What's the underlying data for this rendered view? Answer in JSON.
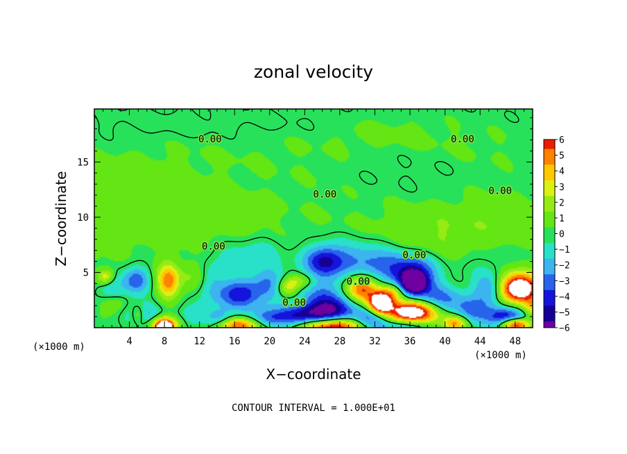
{
  "chart_data": {
    "type": "heatmap",
    "title": "zonal velocity",
    "xlabel": "X−coordinate",
    "ylabel": "Z−coordinate",
    "x_unit": "(×1000 m)",
    "x_unit_right": "(×1000 m)",
    "xlim": [
      0,
      50
    ],
    "ylim": [
      0,
      19.8
    ],
    "x_ticks": [
      4,
      8,
      12,
      16,
      20,
      24,
      28,
      32,
      36,
      40,
      44,
      48
    ],
    "x_tick_labels": [
      "4",
      "8",
      "12",
      "16",
      "20",
      "24",
      "28",
      "32",
      "36",
      "40",
      "44",
      "48"
    ],
    "y_ticks": [
      5,
      10,
      15
    ],
    "y_tick_labels": [
      "5",
      "10",
      "15"
    ],
    "colorbar": {
      "min": -6,
      "max": 6,
      "ticks": [
        6,
        5,
        4,
        3,
        2,
        1,
        0,
        -1,
        -2,
        -3,
        -4,
        -5,
        -6
      ],
      "tick_labels": [
        "6",
        "5",
        "4",
        "3",
        "2",
        "1",
        "0",
        "−1",
        "−2",
        "−3",
        "−4",
        "−5",
        "−6"
      ]
    },
    "contour_level": 0,
    "contour_label": "0.00",
    "contour_labels": [
      {
        "x": 13.6,
        "y": 7.4,
        "text": "0.00"
      },
      {
        "x": 13.2,
        "y": 17.1,
        "text": "0.00"
      },
      {
        "x": 42.0,
        "y": 17.1,
        "text": "0.00"
      },
      {
        "x": 26.3,
        "y": 12.1,
        "text": "0.00"
      },
      {
        "x": 46.3,
        "y": 12.4,
        "text": "0.00"
      },
      {
        "x": 36.5,
        "y": 6.6,
        "text": "0.00"
      },
      {
        "x": 30.1,
        "y": 4.2,
        "text": "0.00"
      },
      {
        "x": 22.8,
        "y": 2.3,
        "text": "0.00"
      }
    ],
    "features": [
      {
        "x": 0.5,
        "y": 10.0,
        "value": 0.6,
        "sx": 6,
        "sy": 3
      },
      {
        "x": 8.0,
        "y": 10.5,
        "value": 0.4,
        "sx": 6,
        "sy": 3
      },
      {
        "x": 15.0,
        "y": 9.8,
        "value": 0.7,
        "sx": 3,
        "sy": 1.5
      },
      {
        "x": 26.0,
        "y": 10.0,
        "value": 0.3,
        "sx": 8,
        "sy": 3
      },
      {
        "x": 38.0,
        "y": 8.5,
        "value": 1.2,
        "sx": 4,
        "sy": 1.8
      },
      {
        "x": 46.0,
        "y": 9.5,
        "value": 0.9,
        "sx": 4,
        "sy": 2
      },
      {
        "x": 6.0,
        "y": 14.5,
        "value": 0.3,
        "sx": 6,
        "sy": 2
      },
      {
        "x": 22.0,
        "y": 16.0,
        "value": 0.3,
        "sx": 8,
        "sy": 2
      },
      {
        "x": 34.0,
        "y": 17.5,
        "value": 0.6,
        "sx": 5,
        "sy": 1.2
      },
      {
        "x": 36.0,
        "y": 14.5,
        "value": -0.3,
        "sx": 6,
        "sy": 2
      },
      {
        "x": 44.0,
        "y": 16.0,
        "value": 0.4,
        "sx": 5,
        "sy": 1.5
      },
      {
        "x": 12.0,
        "y": 18.5,
        "value": -0.5,
        "sx": 10,
        "sy": 1
      },
      {
        "x": 30.0,
        "y": 6.2,
        "value": -2.2,
        "sx": 3,
        "sy": 1.2
      },
      {
        "x": 26.2,
        "y": 6.0,
        "value": -4.2,
        "sx": 1.6,
        "sy": 1.0
      },
      {
        "x": 36.5,
        "y": 4.6,
        "value": -5.8,
        "sx": 1.7,
        "sy": 1.3
      },
      {
        "x": 36.5,
        "y": 4.1,
        "value": -6.6,
        "sx": 0.8,
        "sy": 0.55
      },
      {
        "x": 33.0,
        "y": 5.5,
        "value": -2.0,
        "sx": 2,
        "sy": 1
      },
      {
        "x": 8.4,
        "y": 4.2,
        "value": 5.0,
        "sx": 0.9,
        "sy": 1.1
      },
      {
        "x": 4.8,
        "y": 4.3,
        "value": -3.5,
        "sx": 1.0,
        "sy": 0.9
      },
      {
        "x": 2.0,
        "y": 3.5,
        "value": -1.8,
        "sx": 1.2,
        "sy": 1.0
      },
      {
        "x": 1.3,
        "y": 4.6,
        "value": 3.5,
        "sx": 0.7,
        "sy": 0.5
      },
      {
        "x": 2.2,
        "y": 2.2,
        "value": 1.8,
        "sx": 1.1,
        "sy": 0.7
      },
      {
        "x": 5.5,
        "y": 1.2,
        "value": -2.6,
        "sx": 1.3,
        "sy": 0.8
      },
      {
        "x": 5.0,
        "y": 1.2,
        "value": 2.8,
        "sx": 0.6,
        "sy": 0.6
      },
      {
        "x": 8.0,
        "y": 0.3,
        "value": 6.5,
        "sx": 1.1,
        "sy": 0.5
      },
      {
        "x": 8.0,
        "y": 0.05,
        "value": 9.0,
        "sx": 0.5,
        "sy": 0.3
      },
      {
        "x": 11.0,
        "y": 1.2,
        "value": -1.3,
        "sx": 1.2,
        "sy": 0.8
      },
      {
        "x": 11.2,
        "y": 4.6,
        "value": 1.3,
        "sx": 1.0,
        "sy": 1.0
      },
      {
        "x": 13.5,
        "y": 4.0,
        "value": -1.5,
        "sx": 1.0,
        "sy": 1.2
      },
      {
        "x": 16.5,
        "y": 3.0,
        "value": -4.5,
        "sx": 1.7,
        "sy": 0.9
      },
      {
        "x": 20.0,
        "y": 4.0,
        "value": -2.5,
        "sx": 1.5,
        "sy": 1.2
      },
      {
        "x": 22.0,
        "y": 3.6,
        "value": 3.3,
        "sx": 0.9,
        "sy": 0.6
      },
      {
        "x": 23.5,
        "y": 4.2,
        "value": 2.2,
        "sx": 1.2,
        "sy": 0.5
      },
      {
        "x": 16.5,
        "y": 0.2,
        "value": 5.5,
        "sx": 1.8,
        "sy": 0.5
      },
      {
        "x": 14.2,
        "y": 0.8,
        "value": -2.6,
        "sx": 1.1,
        "sy": 0.6
      },
      {
        "x": 19.5,
        "y": 0.8,
        "value": -2.2,
        "sx": 1.3,
        "sy": 0.6
      },
      {
        "x": 23.5,
        "y": 0.8,
        "value": -5.6,
        "sx": 2.4,
        "sy": 0.8
      },
      {
        "x": 27.0,
        "y": 1.6,
        "value": -5.0,
        "sx": 2.0,
        "sy": 0.9
      },
      {
        "x": 26.5,
        "y": 0.15,
        "value": 8.5,
        "sx": 3.0,
        "sy": 0.55
      },
      {
        "x": 26.0,
        "y": 3.3,
        "value": -2.0,
        "sx": 2,
        "sy": 1
      },
      {
        "x": 30.5,
        "y": 3.5,
        "value": 5.8,
        "sx": 1.3,
        "sy": 0.9
      },
      {
        "x": 32.6,
        "y": 2.2,
        "value": 8.5,
        "sx": 0.9,
        "sy": 0.65
      },
      {
        "x": 34.0,
        "y": 3.2,
        "value": 4.0,
        "sx": 1.0,
        "sy": 0.6
      },
      {
        "x": 31.5,
        "y": 0.7,
        "value": -4.0,
        "sx": 1.4,
        "sy": 0.7
      },
      {
        "x": 36.2,
        "y": 1.4,
        "value": 9.0,
        "sx": 2.1,
        "sy": 0.75
      },
      {
        "x": 39.5,
        "y": 2.5,
        "value": -3.0,
        "sx": 1.8,
        "sy": 0.9
      },
      {
        "x": 35.0,
        "y": 0.1,
        "value": -3.0,
        "sx": 2.0,
        "sy": 0.5
      },
      {
        "x": 41.2,
        "y": 0.4,
        "value": 5.0,
        "sx": 1.0,
        "sy": 0.5
      },
      {
        "x": 43.0,
        "y": 1.5,
        "value": -3.0,
        "sx": 1.3,
        "sy": 0.9
      },
      {
        "x": 45.0,
        "y": 3.5,
        "value": -3.0,
        "sx": 1.2,
        "sy": 1.0
      },
      {
        "x": 48.5,
        "y": 3.6,
        "value": 9.0,
        "sx": 1.6,
        "sy": 0.95
      },
      {
        "x": 47.0,
        "y": 0.9,
        "value": -5.0,
        "sx": 1.6,
        "sy": 0.7
      },
      {
        "x": 48.0,
        "y": 0.3,
        "value": 8.0,
        "sx": 1.2,
        "sy": 0.4
      },
      {
        "x": 50.0,
        "y": 1.8,
        "value": 3.0,
        "sx": 0.8,
        "sy": 0.7
      },
      {
        "x": 16.0,
        "y": 6.5,
        "value": -1.2,
        "sx": 2.0,
        "sy": 1.0
      },
      {
        "x": 19.5,
        "y": 7.0,
        "value": -0.8,
        "sx": 1.6,
        "sy": 1.0
      },
      {
        "x": 44.5,
        "y": 6.0,
        "value": -0.6,
        "sx": 2.0,
        "sy": 1.0
      }
    ],
    "note": "CONTOUR INTERVAL = 1.000E+01"
  }
}
